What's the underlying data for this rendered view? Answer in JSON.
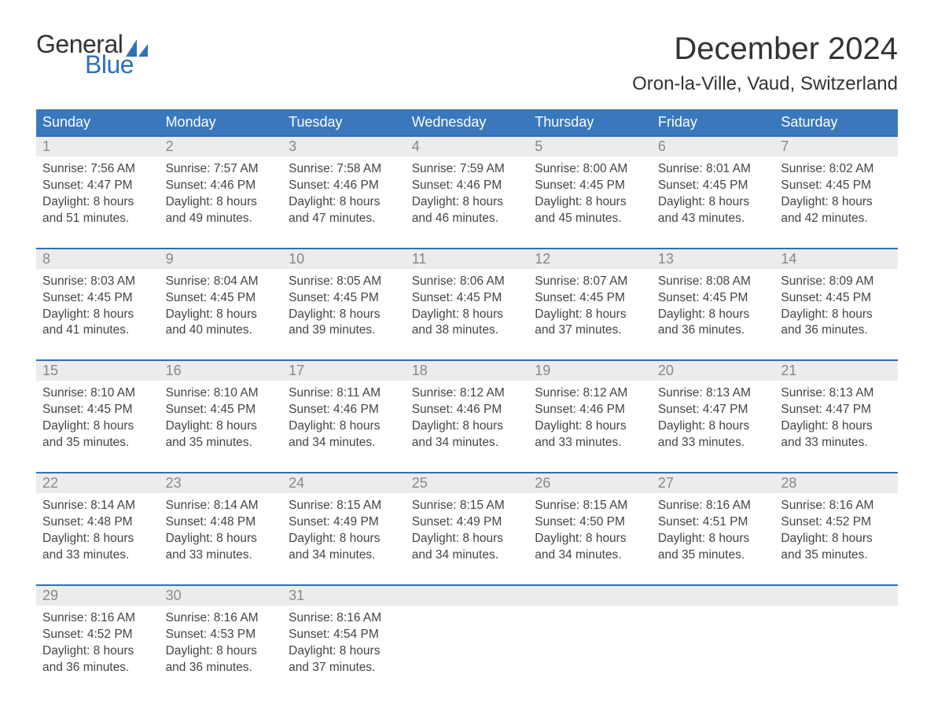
{
  "brand": {
    "word1": "General",
    "word2": "Blue",
    "accent": "#2d71b8",
    "text": "#333333"
  },
  "header": {
    "month_title": "December 2024",
    "location": "Oron-la-Ville, Vaud, Switzerland"
  },
  "theme": {
    "header_bg": "#3a78bd",
    "header_fg": "#ffffff",
    "daynum_bg": "#ececec",
    "daynum_fg": "#888888",
    "week_border": "#2d71b8",
    "body_text": "#444444",
    "page_bg": "#ffffff",
    "title_fontsize": 40,
    "location_fontsize": 24,
    "weekday_fontsize": 18,
    "body_fontsize": 15.5
  },
  "weekdays": [
    "Sunday",
    "Monday",
    "Tuesday",
    "Wednesday",
    "Thursday",
    "Friday",
    "Saturday"
  ],
  "structure": {
    "type": "calendar_table",
    "columns": 7,
    "rows": 5,
    "start_weekday": "Sunday"
  },
  "days": [
    {
      "n": "1",
      "sunrise": "Sunrise: 7:56 AM",
      "sunset": "Sunset: 4:47 PM",
      "d1": "Daylight: 8 hours",
      "d2": "and 51 minutes."
    },
    {
      "n": "2",
      "sunrise": "Sunrise: 7:57 AM",
      "sunset": "Sunset: 4:46 PM",
      "d1": "Daylight: 8 hours",
      "d2": "and 49 minutes."
    },
    {
      "n": "3",
      "sunrise": "Sunrise: 7:58 AM",
      "sunset": "Sunset: 4:46 PM",
      "d1": "Daylight: 8 hours",
      "d2": "and 47 minutes."
    },
    {
      "n": "4",
      "sunrise": "Sunrise: 7:59 AM",
      "sunset": "Sunset: 4:46 PM",
      "d1": "Daylight: 8 hours",
      "d2": "and 46 minutes."
    },
    {
      "n": "5",
      "sunrise": "Sunrise: 8:00 AM",
      "sunset": "Sunset: 4:45 PM",
      "d1": "Daylight: 8 hours",
      "d2": "and 45 minutes."
    },
    {
      "n": "6",
      "sunrise": "Sunrise: 8:01 AM",
      "sunset": "Sunset: 4:45 PM",
      "d1": "Daylight: 8 hours",
      "d2": "and 43 minutes."
    },
    {
      "n": "7",
      "sunrise": "Sunrise: 8:02 AM",
      "sunset": "Sunset: 4:45 PM",
      "d1": "Daylight: 8 hours",
      "d2": "and 42 minutes."
    },
    {
      "n": "8",
      "sunrise": "Sunrise: 8:03 AM",
      "sunset": "Sunset: 4:45 PM",
      "d1": "Daylight: 8 hours",
      "d2": "and 41 minutes."
    },
    {
      "n": "9",
      "sunrise": "Sunrise: 8:04 AM",
      "sunset": "Sunset: 4:45 PM",
      "d1": "Daylight: 8 hours",
      "d2": "and 40 minutes."
    },
    {
      "n": "10",
      "sunrise": "Sunrise: 8:05 AM",
      "sunset": "Sunset: 4:45 PM",
      "d1": "Daylight: 8 hours",
      "d2": "and 39 minutes."
    },
    {
      "n": "11",
      "sunrise": "Sunrise: 8:06 AM",
      "sunset": "Sunset: 4:45 PM",
      "d1": "Daylight: 8 hours",
      "d2": "and 38 minutes."
    },
    {
      "n": "12",
      "sunrise": "Sunrise: 8:07 AM",
      "sunset": "Sunset: 4:45 PM",
      "d1": "Daylight: 8 hours",
      "d2": "and 37 minutes."
    },
    {
      "n": "13",
      "sunrise": "Sunrise: 8:08 AM",
      "sunset": "Sunset: 4:45 PM",
      "d1": "Daylight: 8 hours",
      "d2": "and 36 minutes."
    },
    {
      "n": "14",
      "sunrise": "Sunrise: 8:09 AM",
      "sunset": "Sunset: 4:45 PM",
      "d1": "Daylight: 8 hours",
      "d2": "and 36 minutes."
    },
    {
      "n": "15",
      "sunrise": "Sunrise: 8:10 AM",
      "sunset": "Sunset: 4:45 PM",
      "d1": "Daylight: 8 hours",
      "d2": "and 35 minutes."
    },
    {
      "n": "16",
      "sunrise": "Sunrise: 8:10 AM",
      "sunset": "Sunset: 4:45 PM",
      "d1": "Daylight: 8 hours",
      "d2": "and 35 minutes."
    },
    {
      "n": "17",
      "sunrise": "Sunrise: 8:11 AM",
      "sunset": "Sunset: 4:46 PM",
      "d1": "Daylight: 8 hours",
      "d2": "and 34 minutes."
    },
    {
      "n": "18",
      "sunrise": "Sunrise: 8:12 AM",
      "sunset": "Sunset: 4:46 PM",
      "d1": "Daylight: 8 hours",
      "d2": "and 34 minutes."
    },
    {
      "n": "19",
      "sunrise": "Sunrise: 8:12 AM",
      "sunset": "Sunset: 4:46 PM",
      "d1": "Daylight: 8 hours",
      "d2": "and 33 minutes."
    },
    {
      "n": "20",
      "sunrise": "Sunrise: 8:13 AM",
      "sunset": "Sunset: 4:47 PM",
      "d1": "Daylight: 8 hours",
      "d2": "and 33 minutes."
    },
    {
      "n": "21",
      "sunrise": "Sunrise: 8:13 AM",
      "sunset": "Sunset: 4:47 PM",
      "d1": "Daylight: 8 hours",
      "d2": "and 33 minutes."
    },
    {
      "n": "22",
      "sunrise": "Sunrise: 8:14 AM",
      "sunset": "Sunset: 4:48 PM",
      "d1": "Daylight: 8 hours",
      "d2": "and 33 minutes."
    },
    {
      "n": "23",
      "sunrise": "Sunrise: 8:14 AM",
      "sunset": "Sunset: 4:48 PM",
      "d1": "Daylight: 8 hours",
      "d2": "and 33 minutes."
    },
    {
      "n": "24",
      "sunrise": "Sunrise: 8:15 AM",
      "sunset": "Sunset: 4:49 PM",
      "d1": "Daylight: 8 hours",
      "d2": "and 34 minutes."
    },
    {
      "n": "25",
      "sunrise": "Sunrise: 8:15 AM",
      "sunset": "Sunset: 4:49 PM",
      "d1": "Daylight: 8 hours",
      "d2": "and 34 minutes."
    },
    {
      "n": "26",
      "sunrise": "Sunrise: 8:15 AM",
      "sunset": "Sunset: 4:50 PM",
      "d1": "Daylight: 8 hours",
      "d2": "and 34 minutes."
    },
    {
      "n": "27",
      "sunrise": "Sunrise: 8:16 AM",
      "sunset": "Sunset: 4:51 PM",
      "d1": "Daylight: 8 hours",
      "d2": "and 35 minutes."
    },
    {
      "n": "28",
      "sunrise": "Sunrise: 8:16 AM",
      "sunset": "Sunset: 4:52 PM",
      "d1": "Daylight: 8 hours",
      "d2": "and 35 minutes."
    },
    {
      "n": "29",
      "sunrise": "Sunrise: 8:16 AM",
      "sunset": "Sunset: 4:52 PM",
      "d1": "Daylight: 8 hours",
      "d2": "and 36 minutes."
    },
    {
      "n": "30",
      "sunrise": "Sunrise: 8:16 AM",
      "sunset": "Sunset: 4:53 PM",
      "d1": "Daylight: 8 hours",
      "d2": "and 36 minutes."
    },
    {
      "n": "31",
      "sunrise": "Sunrise: 8:16 AM",
      "sunset": "Sunset: 4:54 PM",
      "d1": "Daylight: 8 hours",
      "d2": "and 37 minutes."
    }
  ]
}
